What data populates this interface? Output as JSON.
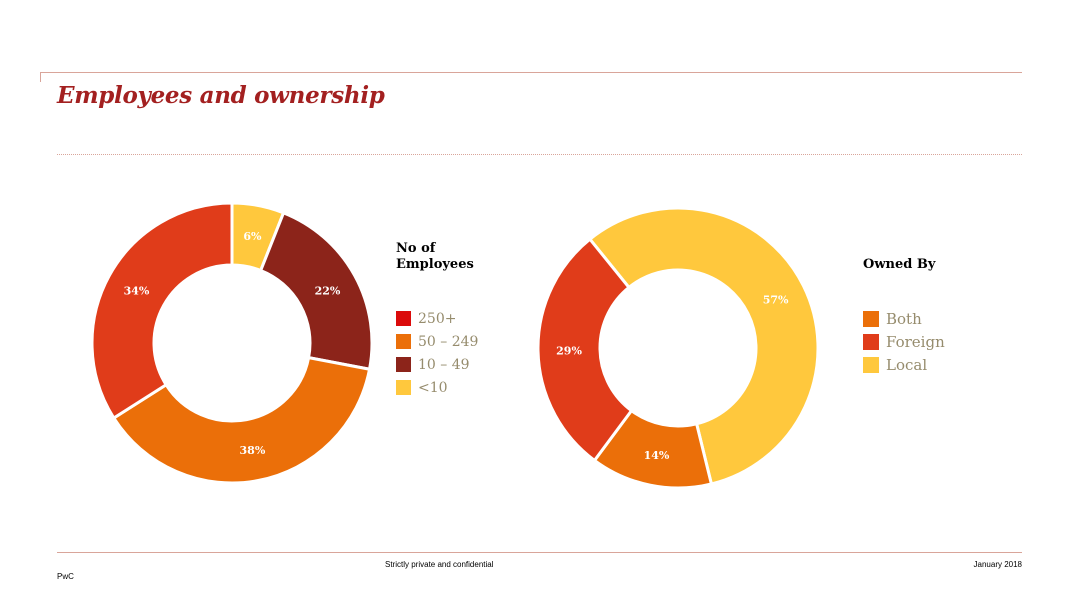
{
  "page": {
    "title": "Employees and ownership",
    "footer_center": "Strictly private and confidential",
    "footer_right": "January 2018",
    "footer_left": "PwC"
  },
  "colors": {
    "accent": "#a32020",
    "rule": "#d9a59a",
    "legend_text": "#968c6d"
  },
  "chart_data": [
    {
      "type": "pie",
      "donut": true,
      "legend_title": "No of Employees",
      "legend_title_lines": [
        "No of",
        "Employees"
      ],
      "legend_position": "right",
      "legend": [
        {
          "label": "250+",
          "color": "#db0b0b"
        },
        {
          "label": "50 – 249",
          "color": "#eb6f09"
        },
        {
          "label": "10 – 49",
          "color": "#8c241a"
        },
        {
          "label": "<10",
          "color": "#ffc83d"
        }
      ],
      "slices": [
        {
          "category": "<10",
          "value": 6,
          "label": "6%",
          "color": "#ffc83d"
        },
        {
          "category": "10 – 49",
          "value": 22,
          "label": "22%",
          "color": "#8c241a"
        },
        {
          "category": "50 – 249",
          "value": 38,
          "label": "38%",
          "color": "#eb6f09"
        },
        {
          "category": "250+",
          "value": 34,
          "label": "34%",
          "color": "#e03c1a"
        }
      ]
    },
    {
      "type": "pie",
      "donut": true,
      "legend_title": "Owned By",
      "legend_position": "right",
      "legend": [
        {
          "label": "Both",
          "color": "#eb6f09"
        },
        {
          "label": "Foreign",
          "color": "#e03c1a"
        },
        {
          "label": "Local",
          "color": "#ffc83d"
        }
      ],
      "slices": [
        {
          "category": "Local",
          "value": 57,
          "label": "57%",
          "color": "#ffc83d"
        },
        {
          "category": "Both",
          "value": 14,
          "label": "14%",
          "color": "#eb6f09"
        },
        {
          "category": "Foreign",
          "value": 29,
          "label": "29%",
          "color": "#e03c1a"
        }
      ]
    }
  ]
}
